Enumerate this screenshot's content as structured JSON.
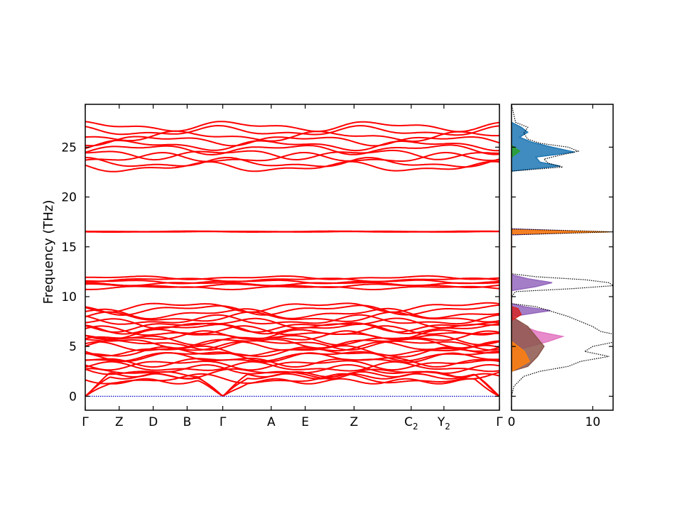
{
  "chart_data": [
    {
      "type": "line",
      "chart": "phonon-band-structure",
      "ylabel": "Frequency (THz)",
      "ylim": [
        -1.4,
        29.3
      ],
      "yticks": [
        0,
        5,
        10,
        15,
        20,
        25
      ],
      "xticks": [
        {
          "label": "Γ",
          "sub": "",
          "pos": 0.0
        },
        {
          "label": "Z",
          "sub": "",
          "pos": 0.082
        },
        {
          "label": "D",
          "sub": "",
          "pos": 0.164
        },
        {
          "label": "B",
          "sub": "",
          "pos": 0.246
        },
        {
          "label": "Γ",
          "sub": "",
          "pos": 0.332
        },
        {
          "label": "A",
          "sub": "",
          "pos": 0.449
        },
        {
          "label": "E",
          "sub": "",
          "pos": 0.531
        },
        {
          "label": "Z",
          "sub": "",
          "pos": 0.649
        },
        {
          "label": "C",
          "sub": "2",
          "pos": 0.787
        },
        {
          "label": "Y",
          "sub": "2",
          "pos": 0.866
        },
        {
          "label": "Γ",
          "sub": "",
          "pos": 1.0
        }
      ],
      "series_color": "#ff0000",
      "zero_line_color": "#0000cc",
      "acoustic_max_near_gamma": 2.2,
      "band_groups": [
        {
          "name": "acoustic-optical-low",
          "levels": [
            1.7,
            2.3,
            2.6,
            2.9,
            3.2,
            3.5,
            3.8,
            4.1,
            4.4,
            4.6,
            4.9,
            5.2,
            5.4,
            5.7,
            6.0,
            6.2,
            6.5,
            6.8,
            7.0,
            7.3,
            7.6,
            7.9,
            8.3,
            8.7,
            9.0
          ]
        },
        {
          "name": "mid",
          "levels": [
            10.9,
            11.1,
            11.3,
            11.5,
            11.7,
            11.9
          ]
        },
        {
          "name": "flat",
          "levels": [
            16.5,
            16.55
          ]
        },
        {
          "name": "high",
          "levels": [
            23.0,
            23.4,
            23.9,
            24.3,
            24.8,
            25.2,
            25.7,
            26.1,
            26.6,
            27.1
          ]
        }
      ]
    },
    {
      "type": "area",
      "chart": "phonon-dos",
      "xlim": [
        0,
        12.5
      ],
      "xticks": [
        0,
        10
      ],
      "ylim": [
        -1.4,
        29.3
      ],
      "total_color": "#000000",
      "total_dos": {
        "freq": [
          -1.4,
          0,
          1,
          2,
          2.5,
          3,
          3.5,
          4,
          4.5,
          5,
          5.5,
          6,
          6.5,
          7,
          7.5,
          8,
          8.5,
          9,
          9.3,
          10,
          10.5,
          10.8,
          11.1,
          11.4,
          11.7,
          12.0,
          12.3,
          13,
          16.2,
          16.5,
          16.8,
          20,
          22.6,
          23.0,
          23.4,
          23.8,
          24.2,
          24.6,
          25.0,
          25.4,
          25.8,
          26.4,
          27.0,
          27.5,
          29.3
        ],
        "dos": [
          0,
          0,
          0.3,
          1.5,
          3.5,
          7.0,
          8.5,
          12,
          9,
          10,
          13,
          14,
          11,
          10,
          8.5,
          7,
          5,
          3,
          0,
          0,
          0.5,
          7.5,
          12.5,
          12,
          9,
          3,
          0,
          0,
          0,
          12.5,
          0,
          0,
          0,
          6.3,
          4.5,
          4.0,
          6.0,
          8.2,
          7.0,
          3.5,
          2.0,
          1.5,
          2.0,
          0.5,
          0
        ]
      },
      "projections": [
        {
          "color": "#1f77b4",
          "freq": [
            22.6,
            23.1,
            23.5,
            24.0,
            24.5,
            25.0,
            25.5,
            26.0,
            26.5,
            27.0,
            27.5
          ],
          "dos": [
            0,
            6.0,
            3.5,
            3.0,
            7.8,
            5.0,
            2.5,
            1.0,
            2.0,
            1.2,
            0
          ]
        },
        {
          "color": "#9467bd",
          "freq": [
            8.0,
            8.6,
            9.0,
            9.3,
            10.6,
            11.0,
            11.4,
            11.8,
            12.2,
            16.2,
            16.5,
            16.8
          ],
          "dos": [
            0,
            4.8,
            1.5,
            0,
            0,
            3.0,
            5.0,
            2.0,
            0,
            0,
            10.5,
            0
          ]
        },
        {
          "color": "#e377c2",
          "freq": [
            4.5,
            5.5,
            6.0,
            6.5,
            7.0,
            7.5,
            8.0
          ],
          "dos": [
            0,
            4.5,
            6.3,
            3.2,
            1.5,
            0.8,
            0
          ]
        },
        {
          "color": "#8c564b",
          "freq": [
            2.5,
            3.0,
            4.0,
            5.0,
            6.0,
            7.0,
            8.0
          ],
          "dos": [
            0,
            2.0,
            3.2,
            4.0,
            3.0,
            2.0,
            0
          ]
        },
        {
          "color": "#ff7f0e",
          "freq": [
            2.5,
            3.5,
            4.5,
            5.5,
            16.3,
            16.5,
            16.7
          ],
          "dos": [
            0,
            2.2,
            1.6,
            0,
            0,
            12.0,
            0
          ]
        },
        {
          "color": "#d62728",
          "freq": [
            7.6,
            8.2,
            8.8,
            9.0
          ],
          "dos": [
            0,
            1.2,
            0.8,
            0
          ]
        },
        {
          "color": "#2ca02c",
          "freq": [
            24.0,
            24.6,
            25.2
          ],
          "dos": [
            0,
            1.0,
            0
          ]
        }
      ]
    }
  ]
}
